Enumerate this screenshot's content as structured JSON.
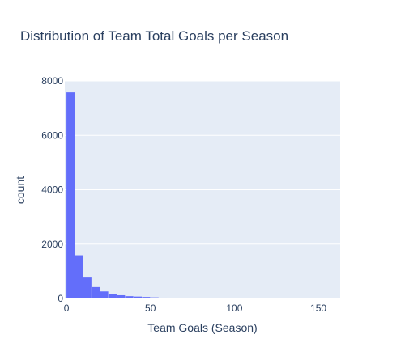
{
  "chart_data": {
    "type": "bar",
    "title": "Distribution of Team Total Goals per Season",
    "xlabel": "Team Goals (Season)",
    "ylabel": "count",
    "xlim": [
      -1,
      163
    ],
    "ylim": [
      0,
      8000
    ],
    "x_ticks": [
      0,
      50,
      100,
      150
    ],
    "y_ticks": [
      0,
      2000,
      4000,
      6000,
      8000
    ],
    "bin_width": 5,
    "bins": [
      {
        "start": 0,
        "end": 5,
        "count": 7580
      },
      {
        "start": 5,
        "end": 10,
        "count": 1590
      },
      {
        "start": 10,
        "end": 15,
        "count": 770
      },
      {
        "start": 15,
        "end": 20,
        "count": 420
      },
      {
        "start": 20,
        "end": 25,
        "count": 260
      },
      {
        "start": 25,
        "end": 30,
        "count": 170
      },
      {
        "start": 30,
        "end": 35,
        "count": 120
      },
      {
        "start": 35,
        "end": 40,
        "count": 85
      },
      {
        "start": 40,
        "end": 45,
        "count": 70
      },
      {
        "start": 45,
        "end": 50,
        "count": 55
      },
      {
        "start": 50,
        "end": 55,
        "count": 40
      },
      {
        "start": 55,
        "end": 60,
        "count": 30
      },
      {
        "start": 60,
        "end": 65,
        "count": 25
      },
      {
        "start": 65,
        "end": 70,
        "count": 20
      },
      {
        "start": 70,
        "end": 75,
        "count": 15
      },
      {
        "start": 75,
        "end": 80,
        "count": 10
      },
      {
        "start": 80,
        "end": 85,
        "count": 8
      },
      {
        "start": 85,
        "end": 90,
        "count": 6
      },
      {
        "start": 90,
        "end": 95,
        "count": 18
      },
      {
        "start": 95,
        "end": 100,
        "count": 4
      },
      {
        "start": 100,
        "end": 105,
        "count": 3
      },
      {
        "start": 105,
        "end": 110,
        "count": 2
      },
      {
        "start": 110,
        "end": 115,
        "count": 2
      },
      {
        "start": 115,
        "end": 120,
        "count": 1
      },
      {
        "start": 120,
        "end": 125,
        "count": 1
      },
      {
        "start": 155,
        "end": 160,
        "count": 1
      }
    ],
    "grid": true,
    "legend": "none",
    "colors": {
      "bar": "#636efa",
      "plot_bg": "#e5ecf6",
      "grid": "#ffffff",
      "text": "#2a3f5f"
    }
  }
}
